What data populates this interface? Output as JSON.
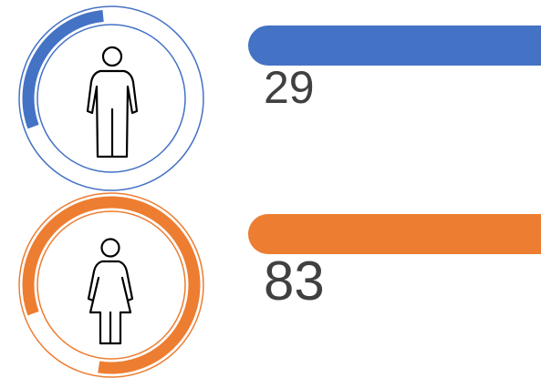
{
  "chart_data": {
    "type": "gauge",
    "values": [
      29,
      83
    ],
    "colors": [
      "#4472c4",
      "#ed7d31"
    ],
    "ylim": [
      0,
      100
    ]
  }
}
